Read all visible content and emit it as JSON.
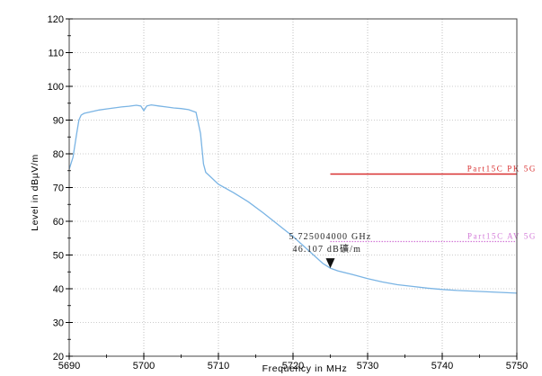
{
  "chart_data": {
    "type": "line",
    "xlabel": "Frequency in MHz",
    "ylabel": "Level in dBµV/m",
    "xlim": [
      5690,
      5750
    ],
    "ylim": [
      20,
      120
    ],
    "x_ticks": [
      5690,
      5700,
      5710,
      5720,
      5730,
      5740,
      5750
    ],
    "y_ticks": [
      20,
      30,
      40,
      50,
      60,
      70,
      80,
      90,
      100,
      110,
      120
    ],
    "grid": true,
    "series": [
      {
        "color": "#7ab4e4",
        "x": [
          5689,
          5689.8,
          5690.5,
          5691,
          5691.3,
          5691.6,
          5692,
          5693,
          5694,
          5695,
          5696,
          5697,
          5698,
          5699,
          5699.6,
          5700,
          5700.4,
          5701,
          5702,
          5703,
          5704,
          5705,
          5706,
          5707,
          5707.6,
          5708.0,
          5708.3,
          5708.8,
          5710,
          5712,
          5714,
          5716,
          5718,
          5720,
          5722,
          5724,
          5725,
          5726,
          5728,
          5730,
          5732,
          5734,
          5736,
          5738,
          5740,
          5742,
          5744,
          5746,
          5748,
          5750
        ],
        "y": [
          72,
          74,
          79,
          86,
          90,
          91.5,
          92,
          92.5,
          93,
          93.3,
          93.6,
          93.9,
          94.1,
          94.4,
          94.2,
          92.8,
          94.2,
          94.5,
          94.2,
          93.9,
          93.6,
          93.4,
          93.1,
          92.3,
          86,
          77,
          74.5,
          73.5,
          71,
          68.5,
          65.8,
          62.5,
          59,
          55.5,
          51.5,
          47.5,
          46.1,
          45.3,
          44.2,
          43,
          42,
          41.2,
          40.7,
          40.2,
          39.8,
          39.5,
          39.3,
          39.1,
          38.9,
          38.7
        ]
      }
    ],
    "limit_lines": [
      {
        "label": "Part15C PK 5G",
        "value": 74,
        "x_start": 5725,
        "x_end": 5750,
        "color": "#d83030",
        "style": "solid"
      },
      {
        "label": "Part15C AV 5G",
        "value": 54,
        "x_start": 5725,
        "x_end": 5750,
        "color": "#d37ad8",
        "style": "dotted"
      }
    ],
    "marker": {
      "x": 5725,
      "y": 46.107,
      "line1": "5.725004000 GHz",
      "line2": "46.107 dB礦/m"
    }
  }
}
